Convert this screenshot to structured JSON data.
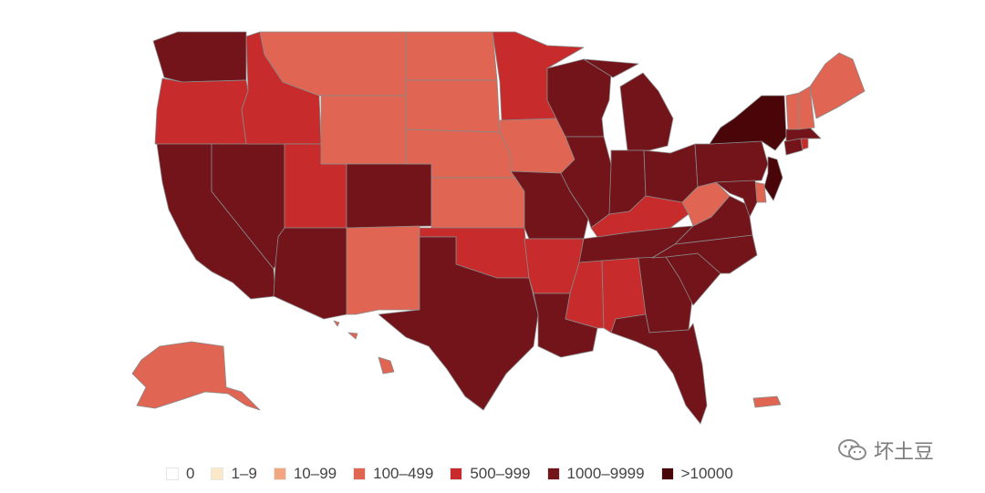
{
  "legend": {
    "items": [
      {
        "label": "0",
        "color": "#ffffff"
      },
      {
        "label": "1–9",
        "color": "#fbe8c8"
      },
      {
        "label": "10–99",
        "color": "#f4a582"
      },
      {
        "label": "100–499",
        "color": "#e06552"
      },
      {
        "label": "500–999",
        "color": "#c72b2b"
      },
      {
        "label": "1000–9999",
        "color": "#73141a"
      },
      {
        "label": ">10000",
        "color": "#4a0509"
      }
    ]
  },
  "watermark": {
    "text": "坏土豆",
    "icon": "wechat-icon"
  },
  "map": {
    "states": [
      {
        "id": "WA",
        "bin": "1000–9999"
      },
      {
        "id": "OR",
        "bin": "500–999"
      },
      {
        "id": "CA",
        "bin": "1000–9999"
      },
      {
        "id": "NV",
        "bin": "1000–9999"
      },
      {
        "id": "ID",
        "bin": "500–999"
      },
      {
        "id": "UT",
        "bin": "500–999"
      },
      {
        "id": "AZ",
        "bin": "1000–9999"
      },
      {
        "id": "MT",
        "bin": "100–499"
      },
      {
        "id": "WY",
        "bin": "100–499"
      },
      {
        "id": "CO",
        "bin": "1000–9999"
      },
      {
        "id": "NM",
        "bin": "100–499"
      },
      {
        "id": "ND",
        "bin": "100–499"
      },
      {
        "id": "SD",
        "bin": "100–499"
      },
      {
        "id": "NE",
        "bin": "100–499"
      },
      {
        "id": "KS",
        "bin": "100–499"
      },
      {
        "id": "OK",
        "bin": "500–999"
      },
      {
        "id": "TX",
        "bin": "1000–9999"
      },
      {
        "id": "MN",
        "bin": "500–999"
      },
      {
        "id": "IA",
        "bin": "100–499"
      },
      {
        "id": "MO",
        "bin": "1000–9999"
      },
      {
        "id": "AR",
        "bin": "500–999"
      },
      {
        "id": "LA",
        "bin": "1000–9999"
      },
      {
        "id": "WI",
        "bin": "1000–9999"
      },
      {
        "id": "IL",
        "bin": "1000–9999"
      },
      {
        "id": "MI",
        "bin": "1000–9999"
      },
      {
        "id": "IN",
        "bin": "1000–9999"
      },
      {
        "id": "OH",
        "bin": "1000–9999"
      },
      {
        "id": "KY",
        "bin": "500–999"
      },
      {
        "id": "TN",
        "bin": "1000–9999"
      },
      {
        "id": "MS",
        "bin": "500–999"
      },
      {
        "id": "AL",
        "bin": "500–999"
      },
      {
        "id": "GA",
        "bin": "1000–9999"
      },
      {
        "id": "FL",
        "bin": "1000–9999"
      },
      {
        "id": "SC",
        "bin": "1000–9999"
      },
      {
        "id": "NC",
        "bin": "1000–9999"
      },
      {
        "id": "VA",
        "bin": "1000–9999"
      },
      {
        "id": "WV",
        "bin": "100–499"
      },
      {
        "id": "PA",
        "bin": "1000–9999"
      },
      {
        "id": "NY",
        "bin": ">10000"
      },
      {
        "id": "NJ",
        "bin": ">10000"
      },
      {
        "id": "DE",
        "bin": "100–499"
      },
      {
        "id": "MD",
        "bin": "1000–9999"
      },
      {
        "id": "CT",
        "bin": "1000–9999"
      },
      {
        "id": "RI",
        "bin": "500–999"
      },
      {
        "id": "MA",
        "bin": "1000–9999"
      },
      {
        "id": "VT",
        "bin": "100–499"
      },
      {
        "id": "NH",
        "bin": "100–499"
      },
      {
        "id": "ME",
        "bin": "100–499"
      },
      {
        "id": "AK",
        "bin": "100–499"
      },
      {
        "id": "HI",
        "bin": "100–499"
      },
      {
        "id": "PR",
        "bin": "100–499"
      }
    ]
  }
}
